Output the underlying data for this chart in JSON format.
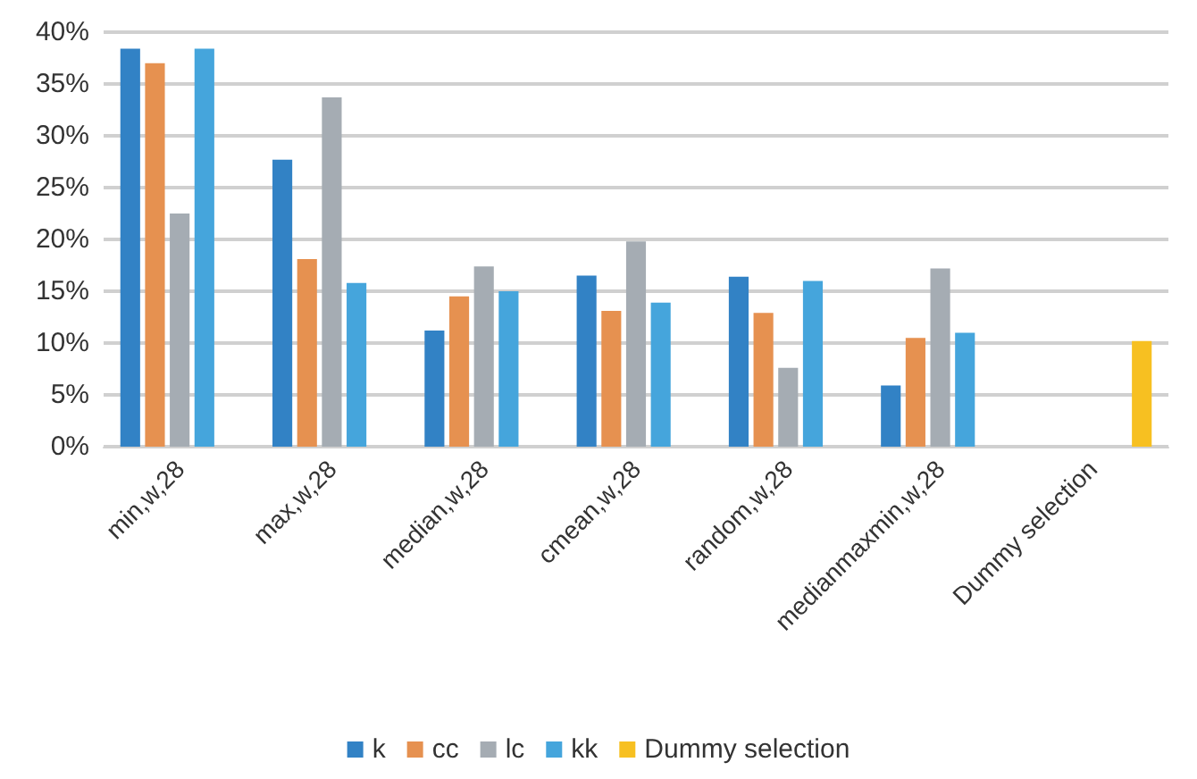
{
  "chart_data": {
    "type": "bar",
    "categories": [
      "min,w,28",
      "max,w,28",
      "median,w,28",
      "cmean,w,28",
      "random,w,28",
      "medianmaxmin,w,28",
      "Dummy selection"
    ],
    "series": [
      {
        "name": "k",
        "color": "#3282c5",
        "values": [
          38.4,
          27.7,
          11.2,
          16.5,
          16.4,
          5.9,
          null
        ]
      },
      {
        "name": "cc",
        "color": "#e69150",
        "values": [
          37.0,
          18.1,
          14.5,
          13.1,
          12.9,
          10.5,
          null
        ]
      },
      {
        "name": "lc",
        "color": "#a5acb3",
        "values": [
          22.5,
          33.7,
          17.4,
          19.8,
          7.6,
          17.2,
          null
        ]
      },
      {
        "name": "kk",
        "color": "#45a5dc",
        "values": [
          38.4,
          15.8,
          15.0,
          13.9,
          16.0,
          11.0,
          null
        ]
      },
      {
        "name": "Dummy selection",
        "color": "#f7c021",
        "values": [
          null,
          null,
          null,
          null,
          null,
          null,
          10.2
        ]
      }
    ],
    "ylim": [
      0,
      40
    ],
    "yticks": [
      {
        "value": 0,
        "label": "0%"
      },
      {
        "value": 5,
        "label": "5%"
      },
      {
        "value": 10,
        "label": "10%"
      },
      {
        "value": 15,
        "label": "15%"
      },
      {
        "value": 20,
        "label": "20%"
      },
      {
        "value": 25,
        "label": "25%"
      },
      {
        "value": 30,
        "label": "30%"
      },
      {
        "value": 35,
        "label": "35%"
      },
      {
        "value": 40,
        "label": "40%"
      }
    ],
    "grid": "y",
    "legend": "bottom"
  }
}
